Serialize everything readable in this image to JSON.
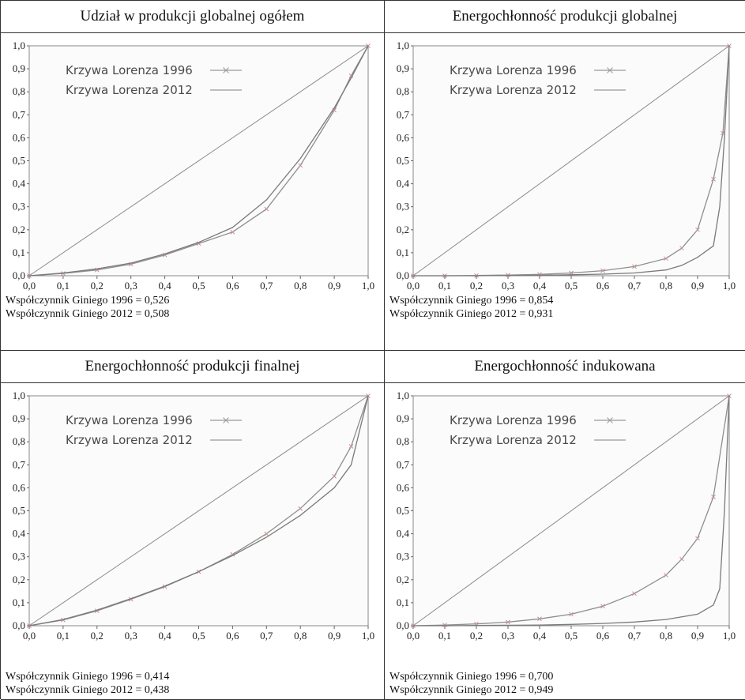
{
  "panels": [
    {
      "title": "Udział w produkcji globalnej ogółem",
      "notes": [
        "Współczynnik Giniego 1996 = 0,526",
        "Współczynnik Giniego 2012 = 0,508"
      ]
    },
    {
      "title": "Energochłonność produkcji globalnej",
      "notes": [
        "Współczynnik Giniego 1996 = 0,854",
        "Współczynnik Giniego 2012 = 0,931"
      ]
    },
    {
      "title": "Energochłonność produkcji finalnej",
      "notes": [
        "Współczynnik Giniego 1996 = 0,414",
        "Współczynnik Giniego 2012 = 0,438"
      ]
    },
    {
      "title": "Energochłonność indukowana",
      "notes": [
        "Współczynnik Giniego 1996 = 0,700",
        "Współczynnik Giniego 2012 = 0,949"
      ]
    }
  ],
  "chart_data": [
    {
      "type": "line",
      "title": "Udział w produkcji globalnej ogółem",
      "xlim": [
        0,
        1
      ],
      "ylim": [
        0,
        1
      ],
      "x_ticks": [
        "0,0",
        "0,1",
        "0,2",
        "0,3",
        "0,4",
        "0,5",
        "0,6",
        "0,7",
        "0,8",
        "0,9",
        "1,0"
      ],
      "y_ticks": [
        "0,0",
        "0,1",
        "0,2",
        "0,3",
        "0,4",
        "0,5",
        "0,6",
        "0,7",
        "0,8",
        "0,9",
        "1,0"
      ],
      "legend_position": "top-left",
      "series": [
        {
          "name": "",
          "style": "equality-line",
          "x": [
            0,
            1
          ],
          "y": [
            0,
            1
          ]
        },
        {
          "name": "Krzywa Lorenza 1996",
          "marker": "x",
          "x": [
            0,
            0.1,
            0.2,
            0.3,
            0.4,
            0.5,
            0.6,
            0.7,
            0.8,
            0.9,
            0.95,
            1.0
          ],
          "y": [
            0,
            0.01,
            0.025,
            0.05,
            0.09,
            0.14,
            0.19,
            0.29,
            0.48,
            0.72,
            0.87,
            1.0
          ]
        },
        {
          "name": "Krzywa Lorenza 2012",
          "x": [
            0,
            0.1,
            0.2,
            0.3,
            0.4,
            0.5,
            0.6,
            0.7,
            0.8,
            0.9,
            0.95,
            1.0
          ],
          "y": [
            0,
            0.012,
            0.03,
            0.055,
            0.095,
            0.145,
            0.21,
            0.33,
            0.51,
            0.73,
            0.86,
            1.0
          ]
        }
      ]
    },
    {
      "type": "line",
      "title": "Energochłonność produkcji globalnej",
      "xlim": [
        0,
        1
      ],
      "ylim": [
        0,
        1
      ],
      "x_ticks": [
        "0,0",
        "0,1",
        "0,2",
        "0,3",
        "0,4",
        "0,5",
        "0,6",
        "0,7",
        "0,8",
        "0,9",
        "1,0"
      ],
      "y_ticks": [
        "0,0",
        "0,1",
        "0,2",
        "0,3",
        "0,4",
        "0,5",
        "0,6",
        "0,7",
        "0,8",
        "0,9",
        "1,0"
      ],
      "legend_position": "top-left",
      "series": [
        {
          "name": "",
          "style": "equality-line",
          "x": [
            0,
            1
          ],
          "y": [
            0,
            1
          ]
        },
        {
          "name": "Krzywa Lorenza 1996",
          "marker": "x",
          "x": [
            0,
            0.1,
            0.2,
            0.3,
            0.4,
            0.5,
            0.6,
            0.7,
            0.8,
            0.85,
            0.9,
            0.95,
            0.98,
            1.0
          ],
          "y": [
            0,
            0.0,
            0.001,
            0.003,
            0.006,
            0.012,
            0.022,
            0.04,
            0.075,
            0.12,
            0.2,
            0.42,
            0.62,
            1.0
          ]
        },
        {
          "name": "Krzywa Lorenza 2012",
          "x": [
            0,
            0.1,
            0.2,
            0.3,
            0.4,
            0.5,
            0.6,
            0.7,
            0.8,
            0.85,
            0.9,
            0.95,
            0.97,
            0.985,
            1.0
          ],
          "y": [
            0,
            0.0,
            0.0,
            0.001,
            0.002,
            0.004,
            0.007,
            0.012,
            0.025,
            0.045,
            0.08,
            0.13,
            0.3,
            0.6,
            1.0
          ]
        }
      ]
    },
    {
      "type": "line",
      "title": "Energochłonność produkcji finalnej",
      "xlim": [
        0,
        1
      ],
      "ylim": [
        0,
        1
      ],
      "x_ticks": [
        "0,0",
        "0,1",
        "0,2",
        "0,3",
        "0,4",
        "0,5",
        "0,6",
        "0,7",
        "0,8",
        "0,9",
        "1,0"
      ],
      "y_ticks": [
        "0,0",
        "0,1",
        "0,2",
        "0,3",
        "0,4",
        "0,5",
        "0,6",
        "0,7",
        "0,8",
        "0,9",
        "1,0"
      ],
      "legend_position": "top-left",
      "series": [
        {
          "name": "",
          "style": "equality-line",
          "x": [
            0,
            1
          ],
          "y": [
            0,
            1
          ]
        },
        {
          "name": "Krzywa Lorenza 1996",
          "marker": "x",
          "x": [
            0,
            0.1,
            0.2,
            0.3,
            0.4,
            0.5,
            0.6,
            0.7,
            0.8,
            0.9,
            0.95,
            1.0
          ],
          "y": [
            0,
            0.025,
            0.065,
            0.115,
            0.17,
            0.235,
            0.31,
            0.4,
            0.51,
            0.65,
            0.78,
            1.0
          ]
        },
        {
          "name": "Krzywa Lorenza 2012",
          "x": [
            0,
            0.1,
            0.2,
            0.3,
            0.4,
            0.5,
            0.6,
            0.7,
            0.8,
            0.9,
            0.95,
            1.0
          ],
          "y": [
            0,
            0.027,
            0.068,
            0.118,
            0.172,
            0.235,
            0.305,
            0.385,
            0.48,
            0.6,
            0.7,
            1.0
          ]
        }
      ]
    },
    {
      "type": "line",
      "title": "Energochłonność indukowana",
      "xlim": [
        0,
        1
      ],
      "ylim": [
        0,
        1
      ],
      "x_ticks": [
        "0,0",
        "0,1",
        "0,2",
        "0,3",
        "0,4",
        "0,5",
        "0,6",
        "0,7",
        "0,8",
        "0,9",
        "1,0"
      ],
      "y_ticks": [
        "0,0",
        "0,1",
        "0,2",
        "0,3",
        "0,4",
        "0,5",
        "0,6",
        "0,7",
        "0,8",
        "0,9",
        "1,0"
      ],
      "legend_position": "top-left",
      "series": [
        {
          "name": "",
          "style": "equality-line",
          "x": [
            0,
            1
          ],
          "y": [
            0,
            1
          ]
        },
        {
          "name": "Krzywa Lorenza 1996",
          "marker": "x",
          "x": [
            0,
            0.1,
            0.2,
            0.3,
            0.4,
            0.5,
            0.6,
            0.7,
            0.8,
            0.85,
            0.9,
            0.95,
            1.0
          ],
          "y": [
            0,
            0.003,
            0.008,
            0.016,
            0.03,
            0.05,
            0.085,
            0.14,
            0.22,
            0.29,
            0.38,
            0.56,
            1.0
          ]
        },
        {
          "name": "Krzywa Lorenza 2012",
          "x": [
            0,
            0.1,
            0.2,
            0.3,
            0.4,
            0.5,
            0.6,
            0.7,
            0.8,
            0.9,
            0.95,
            0.97,
            0.985,
            1.0
          ],
          "y": [
            0,
            0.0,
            0.001,
            0.002,
            0.003,
            0.006,
            0.01,
            0.016,
            0.027,
            0.05,
            0.09,
            0.16,
            0.5,
            1.0
          ]
        }
      ]
    }
  ]
}
